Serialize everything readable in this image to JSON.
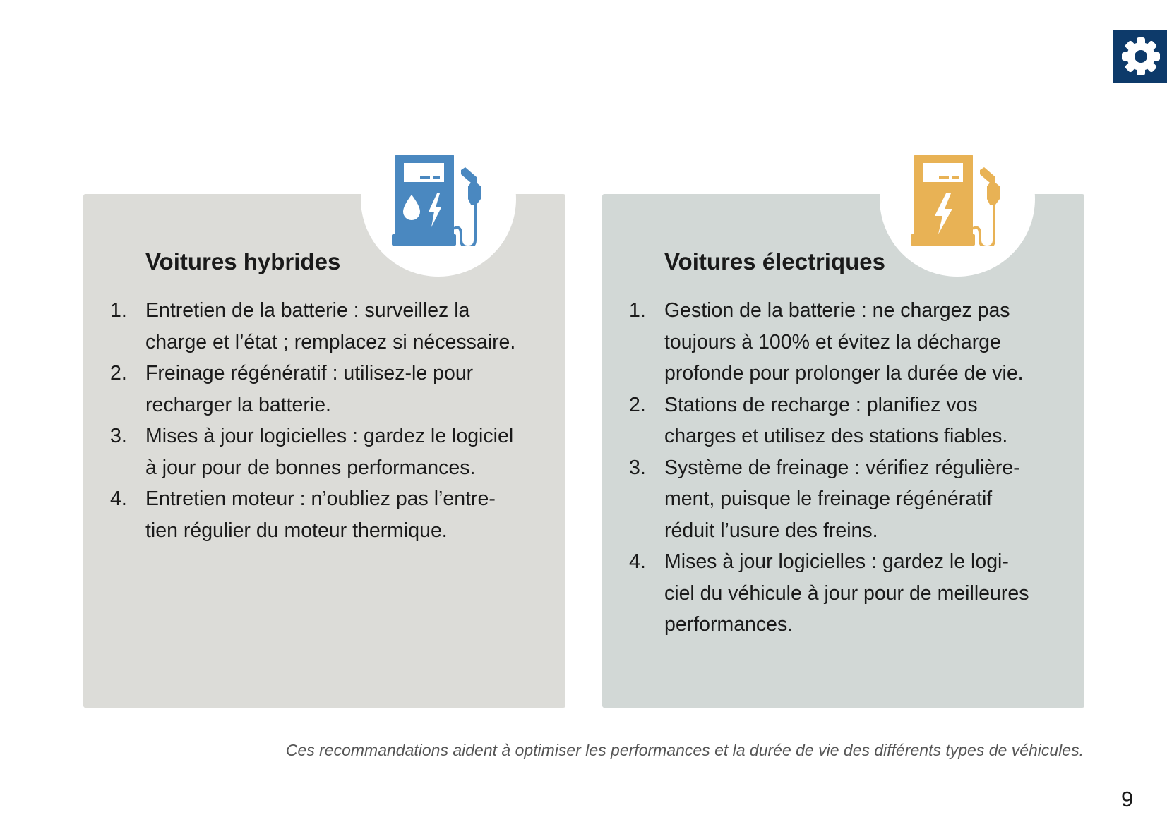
{
  "colors": {
    "hybrid": "#4a88c0",
    "electric": "#e8b255",
    "gear_box": "#0d3a6a"
  },
  "settings_icon": "gear-icon",
  "cards": [
    {
      "title": "Voitures hybrides",
      "icon": "fuel-pump-drop-bolt-icon",
      "items": [
        {
          "num": "1.",
          "lines": [
            "Entretien de la batterie : surveillez la",
            "charge et l’état ; remplacez si nécessaire."
          ]
        },
        {
          "num": "2.",
          "lines": [
            "Freinage régénératif : utilisez-le pour",
            "recharger la batterie."
          ]
        },
        {
          "num": "3.",
          "lines": [
            "Mises à jour logicielles : gardez le logiciel",
            "à jour pour de bonnes performances."
          ]
        },
        {
          "num": "4.",
          "lines": [
            "Entretien moteur : n’oubliez pas l’entre-",
            "tien régulier du moteur thermique."
          ]
        }
      ]
    },
    {
      "title": "Voitures électriques",
      "icon": "charging-station-bolt-icon",
      "items": [
        {
          "num": "1.",
          "lines": [
            "Gestion de la batterie : ne chargez pas",
            "toujours à 100% et évitez la décharge",
            "profonde pour prolonger la durée de vie."
          ]
        },
        {
          "num": "2.",
          "lines": [
            "Stations de recharge : planifiez vos",
            "charges et utilisez des stations fiables."
          ]
        },
        {
          "num": "3.",
          "lines": [
            "Système de freinage : vérifiez régulière-",
            "ment, puisque le freinage régénératif",
            "réduit l’usure des freins."
          ]
        },
        {
          "num": "4.",
          "lines": [
            "Mises à jour logicielles : gardez le logi-",
            "ciel du véhicule à jour pour de meilleures",
            "performances."
          ]
        }
      ]
    }
  ],
  "footer": "Ces recommandations aident à optimiser les performances et la durée de vie des différents types de véhicules.",
  "page_number": "9"
}
